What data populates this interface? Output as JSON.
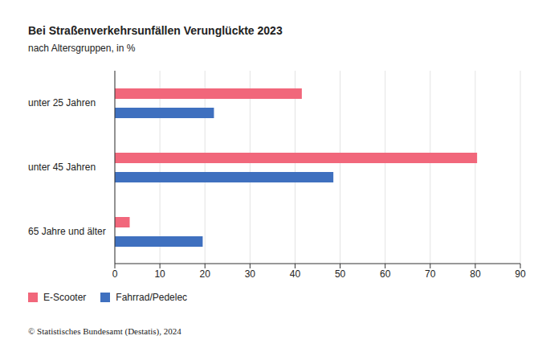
{
  "chart_data": {
    "type": "bar",
    "title": "Bei Straßenverkehrsunfällen Verunglückte 2023",
    "subtitle": "nach Altersgruppen, in %",
    "orientation": "horizontal",
    "categories": [
      "unter 25 Jahren",
      "unter 45 Jahren",
      "65 Jahre und älter"
    ],
    "series": [
      {
        "name": "E-Scooter",
        "color": "#f1677b",
        "values": [
          41.5,
          80.4,
          3.3
        ]
      },
      {
        "name": "Fahrrad/Pedelec",
        "color": "#3f70bf",
        "values": [
          22.0,
          48.5,
          19.5
        ]
      }
    ],
    "xlim": [
      0,
      90
    ],
    "xticks": [
      0,
      10,
      20,
      30,
      40,
      50,
      60,
      70,
      80,
      90
    ],
    "grid": true,
    "legend": "bottom",
    "annotations": [
      "© Statistisches Bundesamt (Destatis), 2024"
    ]
  }
}
